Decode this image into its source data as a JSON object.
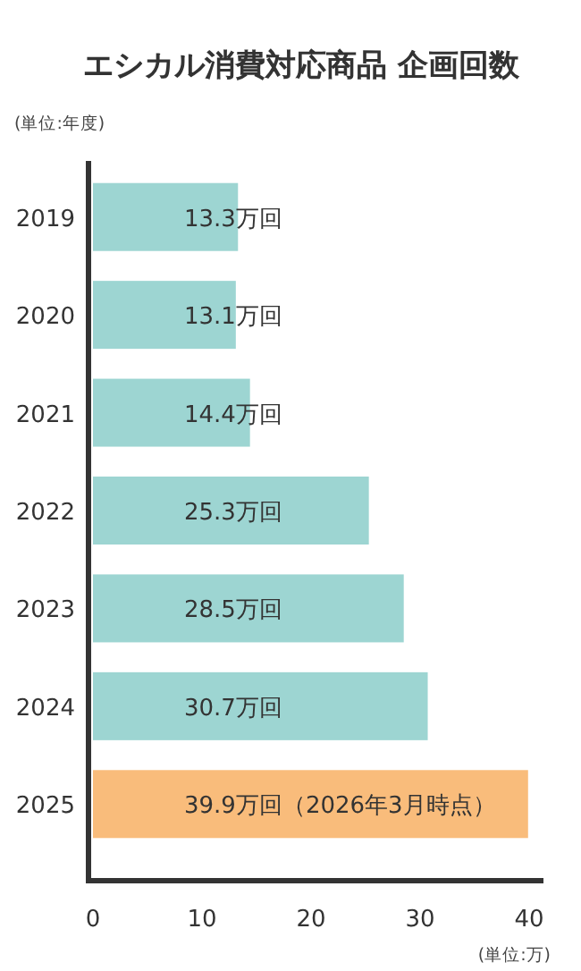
{
  "chart_data": {
    "type": "bar",
    "orientation": "horizontal",
    "title": "エシカル消費対応商品 企画回数",
    "annotations": [
      "(単位:年度)",
      "(単位:万)"
    ],
    "categories": [
      "2019",
      "2020",
      "2021",
      "2022",
      "2023",
      "2024",
      "2025"
    ],
    "values": [
      13.3,
      13.1,
      14.4,
      25.3,
      28.5,
      30.7,
      39.9
    ],
    "colors": [
      "#9dd5d2",
      "#9dd5d2",
      "#9dd5d2",
      "#9dd5d2",
      "#9dd5d2",
      "#9dd5d2",
      "#f9bc7b"
    ],
    "value_labels": [
      "13.3万回",
      "13.1万回",
      "14.4万回",
      "25.3万回",
      "28.5万回",
      "30.7万回",
      "39.9万回（2026年3月時点）"
    ],
    "xlim": [
      0,
      40
    ],
    "xticks": [
      0,
      10,
      20,
      30,
      40
    ]
  }
}
